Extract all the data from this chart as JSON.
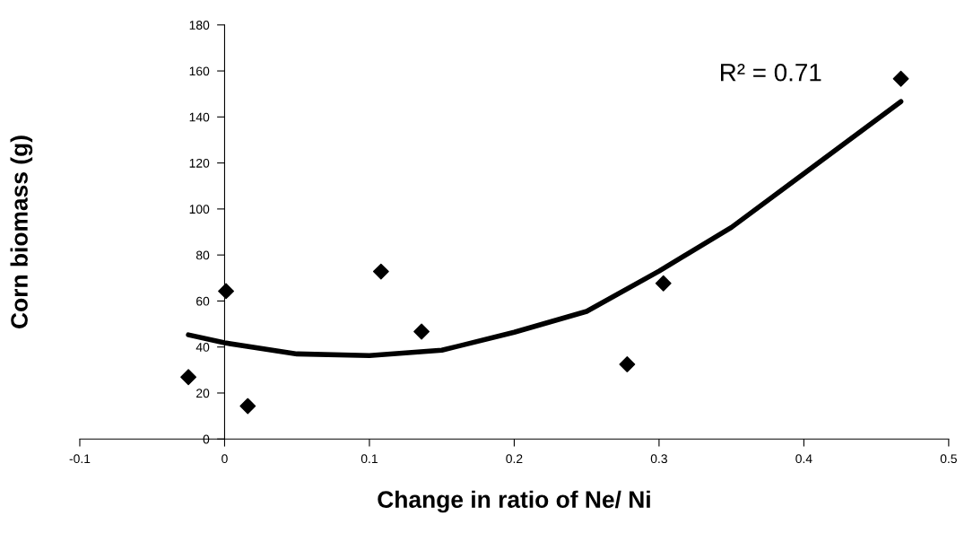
{
  "chart_data": {
    "type": "scatter",
    "xlabel": "Change in ratio of Ne/ Ni",
    "ylabel": "Corn biomass (g)",
    "xlim": [
      -0.1,
      0.5
    ],
    "xticks": [
      -0.1,
      0,
      0.1,
      0.2,
      0.3,
      0.4,
      0.5
    ],
    "ylim": [
      0,
      180
    ],
    "yticks": [
      0,
      20,
      40,
      60,
      80,
      100,
      120,
      140,
      160,
      180
    ],
    "grid": false,
    "legend": false,
    "marker": "diamond",
    "annotations": [
      "R² = 0.71"
    ],
    "series": [
      {
        "color": "#000000",
        "x": [
          -0.025,
          0.001,
          0.016,
          0.108,
          0.136,
          0.278,
          0.303,
          0.467
        ],
        "values": [
          26.9,
          64.3,
          14.3,
          72.8,
          46.7,
          32.5,
          67.7,
          156.6
        ]
      },
      {
        "type": "line",
        "color": "#000000",
        "marker": "none",
        "line_style": "solid",
        "x": [
          -0.025,
          0,
          0.05,
          0.1,
          0.15,
          0.2,
          0.25,
          0.3,
          0.35,
          0.4,
          0.467
        ],
        "values": [
          45.3,
          41.8,
          37.0,
          36.3,
          38.6,
          46.4,
          55.5,
          73.0,
          92.0,
          115.4,
          146.7
        ]
      }
    ]
  }
}
